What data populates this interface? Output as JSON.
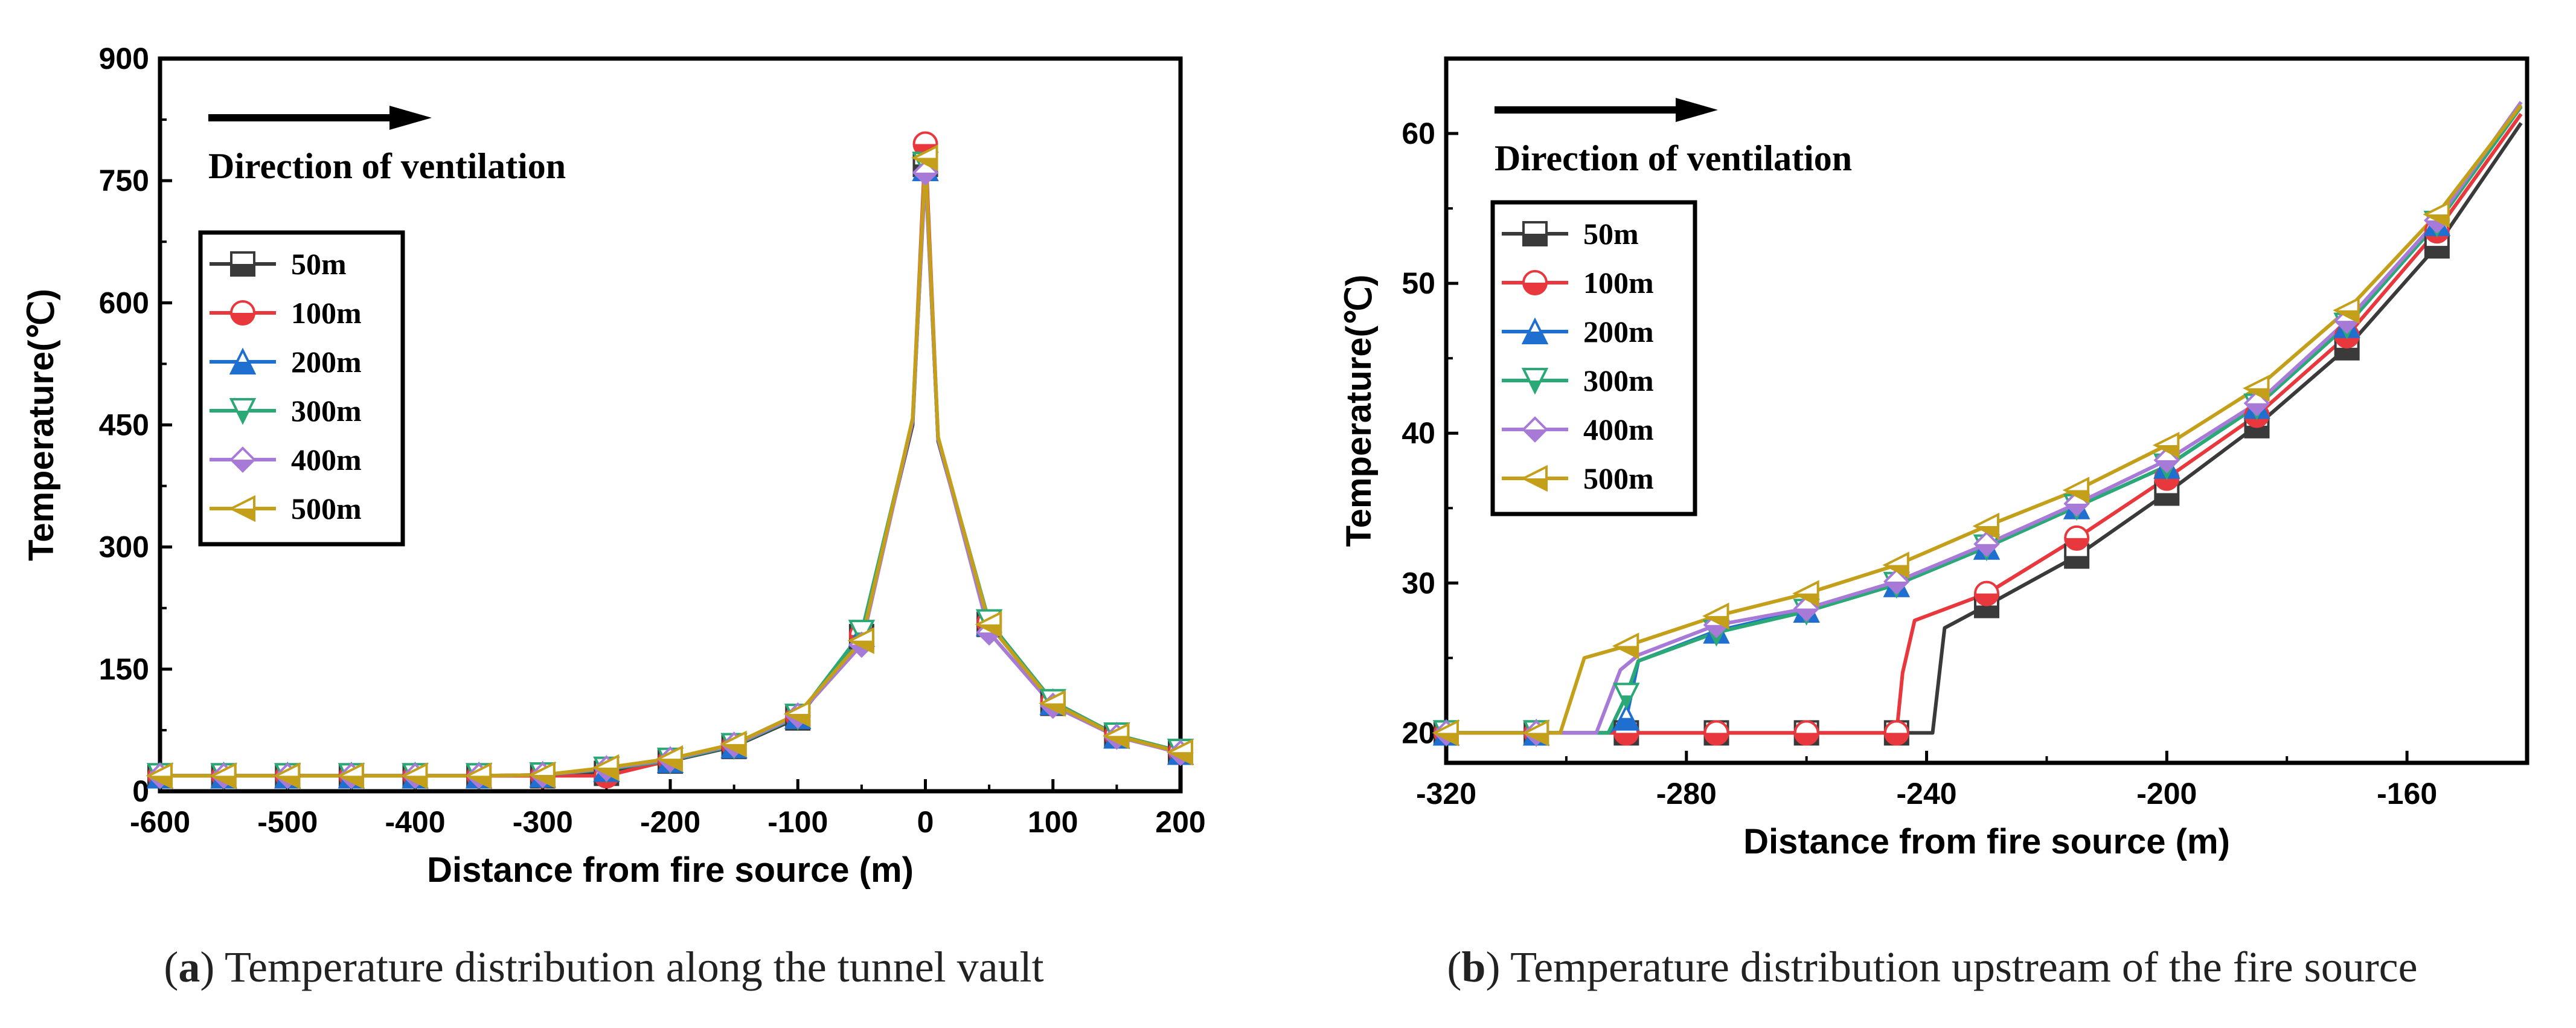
{
  "chart_data": [
    {
      "type": "line",
      "panel_label": "a",
      "caption": "Temperature distribution along the tunnel vault",
      "xlabel": "Distance from fire source (m)",
      "ylabel": "Temperature(℃)",
      "xlim": [
        -600,
        200
      ],
      "ylim": [
        0,
        900
      ],
      "xticks": [
        -600,
        -500,
        -400,
        -300,
        -200,
        -100,
        0,
        100,
        200
      ],
      "yticks": [
        0,
        150,
        300,
        450,
        600,
        750,
        900
      ],
      "annotation": "Direction of ventilation",
      "legend_position": "upper-left",
      "series": [
        {
          "name": "50m",
          "color": "#3a3a3a",
          "marker": "square",
          "x": [
            -600,
            -550,
            -500,
            -450,
            -400,
            -350,
            -300,
            -250,
            -200,
            -150,
            -100,
            -50,
            -10,
            0,
            10,
            50,
            100,
            150,
            200
          ],
          "y": [
            19,
            19,
            19,
            19,
            19,
            19,
            19,
            22,
            37,
            55,
            90,
            190,
            450,
            770,
            430,
            205,
            108,
            68,
            48
          ]
        },
        {
          "name": "100m",
          "color": "#e8383d",
          "marker": "circle",
          "x": [
            -600,
            -550,
            -500,
            -450,
            -400,
            -350,
            -300,
            -250,
            -200,
            -150,
            -100,
            -50,
            -10,
            0,
            10,
            50,
            100,
            150,
            200
          ],
          "y": [
            19,
            19,
            19,
            19,
            19,
            19,
            19,
            19,
            38,
            56,
            92,
            192,
            455,
            795,
            432,
            207,
            110,
            69,
            49
          ]
        },
        {
          "name": "200m",
          "color": "#1f6fd1",
          "marker": "triangle-up",
          "x": [
            -600,
            -550,
            -500,
            -450,
            -400,
            -350,
            -300,
            -250,
            -200,
            -150,
            -100,
            -50,
            -10,
            0,
            10,
            50,
            100,
            150,
            200
          ],
          "y": [
            19,
            19,
            19,
            19,
            19,
            19,
            20,
            27,
            38,
            56,
            92,
            193,
            455,
            765,
            432,
            206,
            109,
            68,
            48
          ]
        },
        {
          "name": "300m",
          "color": "#2aa876",
          "marker": "triangle-down",
          "x": [
            -600,
            -550,
            -500,
            -450,
            -400,
            -350,
            -300,
            -250,
            -200,
            -150,
            -100,
            -50,
            -10,
            0,
            10,
            50,
            100,
            150,
            200
          ],
          "y": [
            19,
            19,
            19,
            19,
            19,
            19,
            20,
            27,
            38,
            56,
            92,
            195,
            455,
            770,
            433,
            208,
            110,
            69,
            49
          ]
        },
        {
          "name": "400m",
          "color": "#a77ad8",
          "marker": "diamond",
          "x": [
            -600,
            -550,
            -500,
            -450,
            -400,
            -350,
            -300,
            -250,
            -200,
            -150,
            -100,
            -50,
            -10,
            0,
            10,
            50,
            100,
            150,
            200
          ],
          "y": [
            19,
            19,
            19,
            19,
            19,
            19,
            20,
            28,
            39,
            57,
            93,
            180,
            455,
            760,
            433,
            195,
            105,
            67,
            47
          ]
        },
        {
          "name": "500m",
          "color": "#c4a01a",
          "marker": "triangle-left",
          "x": [
            -600,
            -550,
            -500,
            -450,
            -400,
            -350,
            -300,
            -250,
            -200,
            -150,
            -100,
            -50,
            -10,
            0,
            10,
            50,
            100,
            150,
            200
          ],
          "y": [
            19,
            19,
            19,
            19,
            19,
            19,
            20,
            29,
            40,
            58,
            95,
            185,
            458,
            778,
            435,
            205,
            108,
            68,
            48
          ]
        }
      ]
    },
    {
      "type": "line",
      "panel_label": "b",
      "caption": "Temperature distribution upstream of the fire source",
      "xlabel": "Distance from fire source (m)",
      "ylabel": "Temperature(℃)",
      "xlim": [
        -320,
        -140
      ],
      "ylim": [
        18,
        65
      ],
      "xticks": [
        -320,
        -280,
        -240,
        -200,
        -160
      ],
      "yticks": [
        20,
        30,
        40,
        50,
        60
      ],
      "annotation": "Direction of ventilation",
      "legend_position": "upper-left",
      "series": [
        {
          "name": "50m",
          "color": "#3a3a3a",
          "marker": "square",
          "x": [
            -320,
            -305,
            -290,
            -275,
            -260,
            -245,
            -239,
            -237,
            -230,
            -215,
            -200,
            -185,
            -170,
            -155,
            -141
          ],
          "y": [
            20,
            20,
            20,
            20,
            20,
            20,
            20,
            27,
            28.5,
            31.8,
            36,
            40.5,
            45.7,
            52.5,
            60.7
          ]
        },
        {
          "name": "100m",
          "color": "#e8383d",
          "marker": "circle",
          "x": [
            -320,
            -305,
            -290,
            -275,
            -260,
            -245,
            -244,
            -242,
            -230,
            -215,
            -200,
            -185,
            -170,
            -155,
            -141
          ],
          "y": [
            20,
            20,
            20,
            20,
            20,
            20,
            24,
            27.5,
            29.3,
            33,
            37,
            41.2,
            46.5,
            53.5,
            61.3
          ]
        },
        {
          "name": "200m",
          "color": "#1f6fd1",
          "marker": "triangle-up",
          "x": [
            -320,
            -305,
            -293,
            -290,
            -288,
            -275,
            -260,
            -245,
            -230,
            -215,
            -200,
            -185,
            -170,
            -155,
            -141
          ],
          "y": [
            20,
            20,
            20,
            21,
            24.8,
            26.8,
            28.2,
            29.9,
            32.4,
            35.1,
            37.8,
            41.8,
            47.2,
            54,
            61.8
          ]
        },
        {
          "name": "300m",
          "color": "#2aa876",
          "marker": "triangle-down",
          "x": [
            -320,
            -305,
            -293,
            -290,
            -288,
            -275,
            -260,
            -245,
            -230,
            -215,
            -200,
            -185,
            -170,
            -155,
            -141
          ],
          "y": [
            20,
            20,
            20,
            22.5,
            24.8,
            26.7,
            28.1,
            29.9,
            32.4,
            35.1,
            37.8,
            41.8,
            47.2,
            54,
            61.8
          ]
        },
        {
          "name": "400m",
          "color": "#a77ad8",
          "marker": "diamond",
          "x": [
            -320,
            -305,
            -295,
            -291,
            -288,
            -275,
            -260,
            -245,
            -230,
            -215,
            -200,
            -185,
            -170,
            -155,
            -141
          ],
          "y": [
            20,
            20,
            20,
            24.2,
            25.2,
            27.2,
            28.3,
            30.1,
            32.6,
            35.3,
            38.2,
            42,
            47.5,
            54.2,
            62.1
          ]
        },
        {
          "name": "500m",
          "color": "#c4a01a",
          "marker": "triangle-left",
          "x": [
            -320,
            -305,
            -301,
            -297,
            -290,
            -275,
            -260,
            -245,
            -230,
            -215,
            -200,
            -185,
            -170,
            -155,
            -141
          ],
          "y": [
            20,
            20,
            20,
            25,
            25.8,
            27.8,
            29.3,
            31.2,
            33.8,
            36.2,
            39.2,
            43,
            48.2,
            54.6,
            61.9
          ]
        }
      ]
    }
  ]
}
